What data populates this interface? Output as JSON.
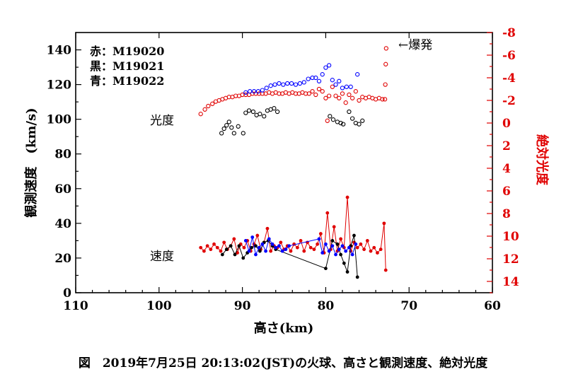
{
  "caption": "図　2019年7月25日 20:13:02(JST)の火球、高さと観測速度、絶対光度",
  "chart_data": {
    "type": "scatter",
    "x": {
      "label": "高さ(km)",
      "range": [
        110,
        60
      ],
      "ticks": [
        110,
        100,
        90,
        80,
        70,
        60
      ]
    },
    "y_left": {
      "label": "観測速度　(km/s)",
      "range": [
        0,
        150
      ],
      "ticks": [
        0,
        20,
        40,
        60,
        80,
        100,
        120,
        140
      ]
    },
    "y_right": {
      "label": "絶対光度",
      "range": [
        15,
        -8
      ],
      "ticks": [
        -8,
        -6,
        -4,
        -2,
        0,
        2,
        4,
        6,
        8,
        10,
        12,
        14
      ],
      "color": "#e00000"
    },
    "legend": {
      "lines": [
        "赤：M19020",
        "黒：M19021",
        "青：M19022"
      ],
      "placement": "top-left"
    },
    "annotations": {
      "burst": "←爆発",
      "brightness_group": "光度",
      "speed_group": "速度"
    },
    "series": [
      {
        "name": "M19020",
        "color": "#e00000",
        "kind": "brightness",
        "axis": "right",
        "x": [
          95.0,
          94.5,
          94.1,
          93.6,
          93.2,
          92.8,
          92.4,
          92.0,
          91.6,
          91.2,
          90.8,
          90.4,
          90.0,
          89.6,
          89.2,
          88.8,
          88.4,
          88.0,
          87.6,
          87.2,
          86.8,
          86.4,
          86.0,
          85.6,
          85.2,
          84.8,
          84.4,
          84.0,
          83.6,
          83.2,
          82.8,
          82.4,
          82.0,
          81.6,
          81.2,
          80.8,
          80.4,
          80.0,
          79.6,
          79.2,
          78.8,
          78.4,
          78.0,
          77.6,
          77.2,
          76.8,
          76.4,
          76.0,
          75.6,
          75.2,
          74.8,
          74.4,
          74.0,
          73.6,
          73.2,
          72.9,
          72.85,
          72.8,
          72.75,
          79.8
        ],
        "values": [
          -0.8,
          -1.2,
          -1.5,
          -1.7,
          -1.9,
          -2.0,
          -2.1,
          -2.2,
          -2.3,
          -2.3,
          -2.4,
          -2.4,
          -2.5,
          -2.5,
          -2.5,
          -2.6,
          -2.6,
          -2.6,
          -2.6,
          -2.6,
          -2.7,
          -2.6,
          -2.7,
          -2.6,
          -2.6,
          -2.7,
          -2.6,
          -2.7,
          -2.6,
          -2.6,
          -2.7,
          -2.6,
          -2.6,
          -2.8,
          -2.5,
          -3.0,
          -2.8,
          -2.2,
          -2.4,
          -3.2,
          -2.4,
          -2.2,
          -2.6,
          -1.8,
          -2.5,
          -2.2,
          -2.8,
          -2.0,
          -2.3,
          -2.2,
          -2.3,
          -2.2,
          -2.1,
          -2.2,
          -2.1,
          -2.1,
          -3.4,
          -5.2,
          -6.6,
          -0.2
        ]
      },
      {
        "name": "M19021",
        "color": "#000000",
        "kind": "brightness",
        "axis": "right",
        "x": [
          92.5,
          92.2,
          91.9,
          91.6,
          91.3,
          91.0,
          90.5,
          89.9,
          89.6,
          89.2,
          88.7,
          88.3,
          87.9,
          87.4,
          87.0,
          86.6,
          86.2,
          85.8,
          79.5,
          79.1,
          78.6,
          78.2,
          77.9,
          77.2,
          76.8,
          76.4,
          76.0,
          75.6
        ],
        "values": [
          0.9,
          0.5,
          0.2,
          -0.1,
          0.4,
          0.9,
          0.3,
          0.9,
          -0.9,
          -1.1,
          -1.0,
          -0.7,
          -0.8,
          -0.6,
          -1.1,
          -1.2,
          -1.3,
          -1.0,
          -0.6,
          -0.3,
          -0.1,
          0.0,
          0.1,
          -1.0,
          -0.4,
          0.0,
          0.1,
          -0.2
        ]
      },
      {
        "name": "M19022",
        "color": "#0000ff",
        "kind": "brightness",
        "axis": "right",
        "x": [
          89.6,
          89.1,
          88.6,
          88.1,
          87.6,
          87.1,
          86.6,
          86.1,
          85.6,
          85.1,
          84.6,
          84.1,
          83.6,
          83.1,
          82.6,
          82.1,
          81.6,
          81.2,
          80.8,
          80.4,
          80.0,
          79.6,
          79.2,
          78.8,
          78.4,
          78.0,
          77.5,
          77.0,
          76.2
        ],
        "values": [
          -2.7,
          -2.8,
          -2.8,
          -2.8,
          -2.9,
          -3.1,
          -3.3,
          -3.4,
          -3.5,
          -3.4,
          -3.5,
          -3.5,
          -3.4,
          -3.5,
          -3.6,
          -3.9,
          -4.0,
          -4.0,
          -3.7,
          -4.3,
          -4.9,
          -5.1,
          -3.8,
          -3.4,
          -3.7,
          -3.1,
          -3.2,
          -3.2,
          -4.3
        ]
      },
      {
        "name": "M19020",
        "color": "#e00000",
        "kind": "speed",
        "axis": "left",
        "x": [
          95.0,
          94.6,
          94.2,
          93.8,
          93.4,
          93.0,
          92.6,
          92.2,
          91.8,
          91.4,
          91.0,
          90.6,
          90.2,
          89.8,
          89.4,
          89.0,
          88.6,
          88.2,
          87.8,
          87.4,
          87.0,
          86.6,
          86.2,
          85.8,
          85.4,
          85.0,
          84.6,
          84.2,
          83.8,
          83.4,
          83.0,
          82.6,
          82.2,
          81.8,
          81.4,
          81.0,
          80.6,
          80.2,
          79.8,
          79.4,
          79.0,
          78.6,
          78.2,
          77.8,
          77.4,
          77.0,
          76.6,
          76.2,
          75.8,
          75.4,
          75.0,
          74.6,
          74.2,
          73.8,
          73.4,
          73.0,
          72.8
        ],
        "values": [
          26,
          24,
          27,
          25,
          28,
          26,
          24,
          29,
          25,
          27,
          31,
          23,
          28,
          26,
          30,
          24,
          28,
          33,
          25,
          29,
          37,
          24,
          27,
          26,
          29,
          25,
          27,
          24,
          28,
          26,
          30,
          24,
          29,
          26,
          25,
          28,
          34,
          23,
          46,
          25,
          38,
          24,
          31,
          26,
          55,
          24,
          29,
          26,
          28,
          25,
          30,
          24,
          26,
          23,
          25,
          40,
          13
        ]
      },
      {
        "name": "M19021",
        "color": "#000000",
        "kind": "speed",
        "axis": "left",
        "x": [
          92.4,
          91.9,
          91.4,
          90.9,
          90.4,
          89.9,
          89.4,
          88.9,
          88.4,
          87.9,
          87.4,
          86.9,
          86.4,
          86.0,
          80.0,
          79.2,
          78.6,
          78.2,
          77.8,
          77.4,
          77.0,
          76.6,
          76.2
        ],
        "values": [
          22,
          25,
          27,
          22,
          27,
          20,
          23,
          26,
          27,
          24,
          29,
          30,
          27,
          25,
          14,
          30,
          28,
          22,
          17,
          12,
          27,
          33,
          9
        ]
      },
      {
        "name": "M19022",
        "color": "#0000ff",
        "kind": "speed",
        "axis": "left",
        "x": [
          89.6,
          89.2,
          88.8,
          88.4,
          88.0,
          87.6,
          87.2,
          86.8,
          86.4,
          86.0,
          85.6,
          85.2,
          84.8,
          84.4,
          80.8,
          80.4,
          80.0,
          79.6,
          79.2,
          78.8,
          78.4,
          78.0,
          77.6,
          77.2,
          76.8,
          76.4
        ],
        "values": [
          30,
          24,
          32,
          22,
          26,
          28,
          24,
          31,
          28,
          26,
          27,
          24,
          25,
          27,
          31,
          23,
          28,
          24,
          27,
          22,
          25,
          27,
          24,
          26,
          22,
          28
        ]
      }
    ]
  }
}
